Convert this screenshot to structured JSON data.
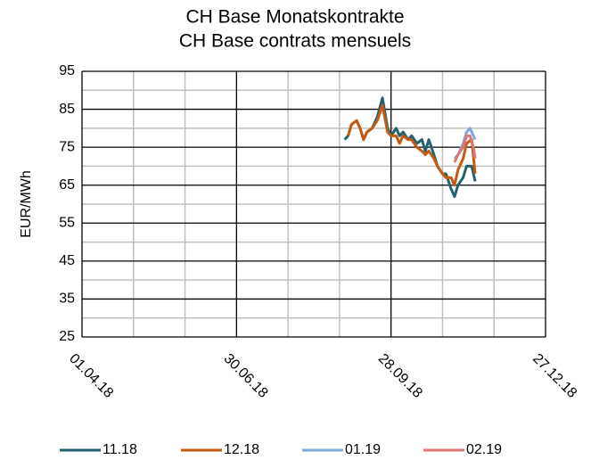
{
  "chart_data": {
    "type": "line",
    "title": "CH Base Monatskontrakte",
    "subtitle": "CH Base contrats mensuels",
    "y_label": "EUR/MWh",
    "ylim": [
      25,
      95
    ],
    "yticks": [
      25,
      35,
      45,
      55,
      65,
      75,
      85,
      95
    ],
    "y_minor_step": 5,
    "xlim": [
      "2018-04-01",
      "2018-12-27"
    ],
    "xticks": [
      {
        "value": "2018-04-01",
        "label": "01.04.18"
      },
      {
        "value": "2018-06-30",
        "label": "30.06.18"
      },
      {
        "value": "2018-09-28",
        "label": "28.09.18"
      },
      {
        "value": "2018-12-27",
        "label": "27.12.18"
      }
    ],
    "x_minor_step_days": 30,
    "grid": true,
    "legend": "bottom",
    "series": [
      {
        "name": "11.18",
        "color": "#24616f",
        "x": [
          "2018-09-01",
          "2018-09-03",
          "2018-09-05",
          "2018-09-08",
          "2018-09-10",
          "2018-09-12",
          "2018-09-14",
          "2018-09-17",
          "2018-09-20",
          "2018-09-23",
          "2018-09-26",
          "2018-09-28",
          "2018-10-01",
          "2018-10-03",
          "2018-10-05",
          "2018-10-08",
          "2018-10-10",
          "2018-10-13",
          "2018-10-16",
          "2018-10-18",
          "2018-10-20",
          "2018-10-23",
          "2018-10-25",
          "2018-10-28",
          "2018-10-30",
          "2018-11-02",
          "2018-11-04",
          "2018-11-06",
          "2018-11-09",
          "2018-11-11",
          "2018-11-14",
          "2018-11-16"
        ],
        "values": [
          77,
          78,
          81,
          82,
          80,
          77,
          79,
          80,
          83,
          88,
          80,
          78,
          80,
          78,
          79,
          77,
          78,
          76,
          77,
          74,
          77,
          73,
          70,
          68,
          68,
          64,
          62,
          65,
          67,
          70,
          70,
          66
        ]
      },
      {
        "name": "12.18",
        "color": "#c55a11",
        "x": [
          "2018-09-03",
          "2018-09-05",
          "2018-09-08",
          "2018-09-10",
          "2018-09-12",
          "2018-09-14",
          "2018-09-17",
          "2018-09-20",
          "2018-09-23",
          "2018-09-26",
          "2018-09-28",
          "2018-10-01",
          "2018-10-03",
          "2018-10-05",
          "2018-10-08",
          "2018-10-10",
          "2018-10-13",
          "2018-10-16",
          "2018-10-18",
          "2018-10-20",
          "2018-10-23",
          "2018-10-25",
          "2018-10-28",
          "2018-10-30",
          "2018-11-02",
          "2018-11-04",
          "2018-11-06",
          "2018-11-09",
          "2018-11-11",
          "2018-11-14",
          "2018-11-16"
        ],
        "values": [
          78,
          81,
          82,
          80,
          77,
          79,
          80,
          82,
          86,
          79,
          78,
          78,
          76,
          78,
          77,
          77,
          75,
          74,
          73,
          74,
          72,
          70,
          68,
          67,
          67,
          65,
          69,
          72,
          76,
          77,
          68
        ]
      },
      {
        "name": "01.19",
        "color": "#7fa9d9",
        "x": [
          "2018-11-04",
          "2018-11-06",
          "2018-11-09",
          "2018-11-11",
          "2018-11-13",
          "2018-11-15",
          "2018-11-16"
        ],
        "values": [
          72,
          73,
          76,
          79,
          80,
          78,
          77
        ]
      },
      {
        "name": "02.19",
        "color": "#e07575",
        "x": [
          "2018-11-04",
          "2018-11-06",
          "2018-11-09",
          "2018-11-11",
          "2018-11-13",
          "2018-11-15",
          "2018-11-16"
        ],
        "values": [
          71,
          73,
          75,
          78,
          78,
          75,
          72
        ]
      }
    ]
  }
}
